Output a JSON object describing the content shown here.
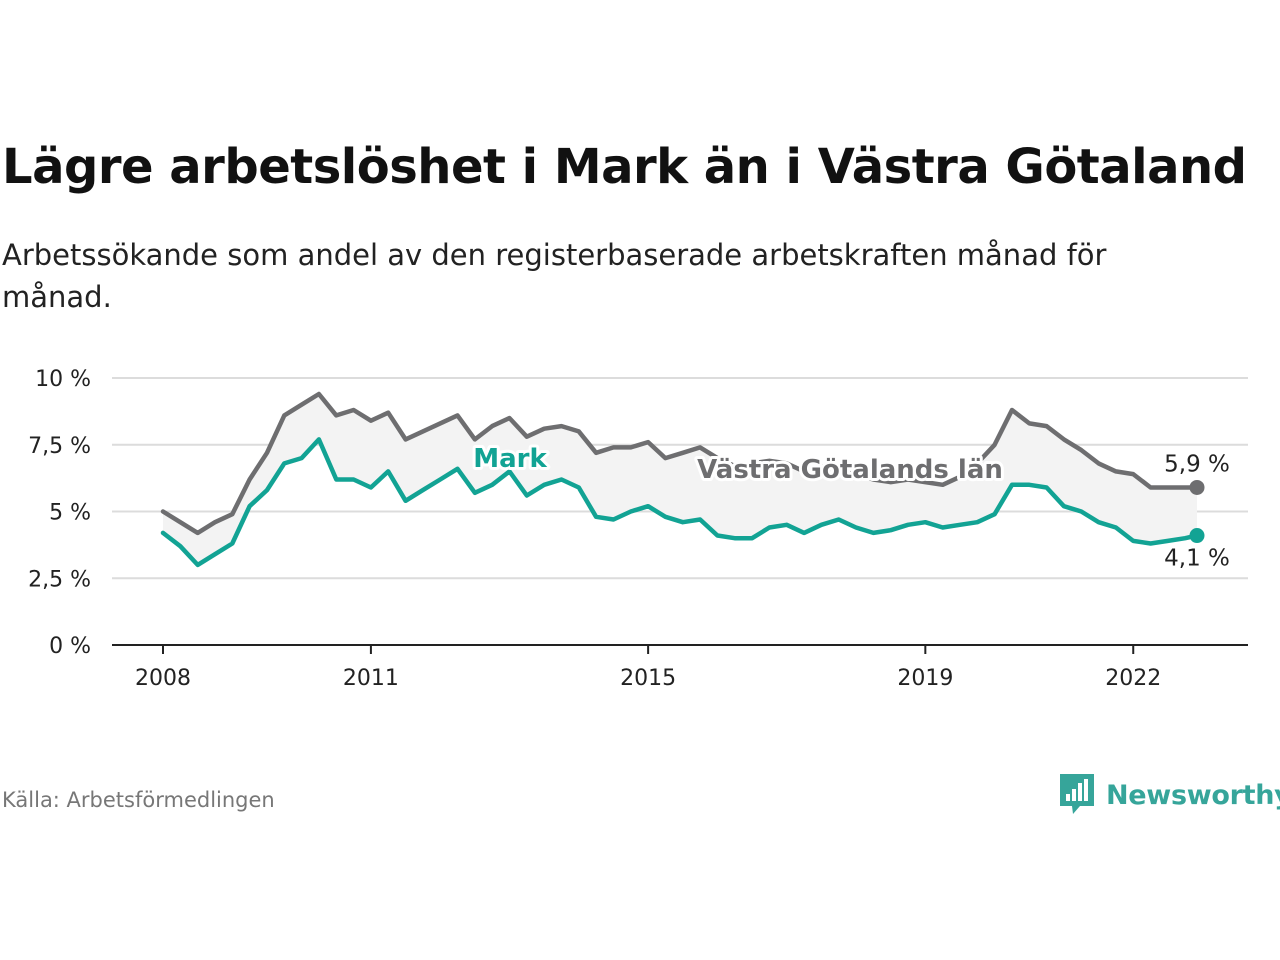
{
  "title": "Lägre arbetslöshet i Mark än i Västra Götaland",
  "subtitle": "Arbetssökande som andel av den registerbaserade arbetskraften månad för månad.",
  "source": "Källa: Arbetsförmedlingen",
  "brand": {
    "name": "Newsworthy",
    "icon": "newsworthy-logo-icon",
    "color": "#36a59a"
  },
  "chart_data": {
    "type": "line",
    "title": "Lägre arbetslöshet i Mark än i Västra Götaland",
    "xlabel": "",
    "ylabel": "",
    "ylim": [
      0,
      10
    ],
    "xlim": [
      2008,
      2023
    ],
    "y_ticks": [
      {
        "value": 0,
        "label": "0 %"
      },
      {
        "value": 2.5,
        "label": "2,5 %"
      },
      {
        "value": 5,
        "label": "5 %"
      },
      {
        "value": 7.5,
        "label": "7,5 %"
      },
      {
        "value": 10,
        "label": "10 %"
      }
    ],
    "x_ticks": [
      {
        "value": 2008,
        "label": "2008"
      },
      {
        "value": 2011,
        "label": "2011"
      },
      {
        "value": 2015,
        "label": "2015"
      },
      {
        "value": 2019,
        "label": "2019"
      },
      {
        "value": 2022,
        "label": "2022"
      }
    ],
    "grid": true,
    "x": [
      2008.0,
      2008.25,
      2008.5,
      2008.75,
      2009.0,
      2009.25,
      2009.5,
      2009.75,
      2010.0,
      2010.25,
      2010.5,
      2010.75,
      2011.0,
      2011.25,
      2011.5,
      2011.75,
      2012.0,
      2012.25,
      2012.5,
      2012.75,
      2013.0,
      2013.25,
      2013.5,
      2013.75,
      2014.0,
      2014.25,
      2014.5,
      2014.75,
      2015.0,
      2015.25,
      2015.5,
      2015.75,
      2016.0,
      2016.25,
      2016.5,
      2016.75,
      2017.0,
      2017.25,
      2017.5,
      2017.75,
      2018.0,
      2018.25,
      2018.5,
      2018.75,
      2019.0,
      2019.25,
      2019.5,
      2019.75,
      2020.0,
      2020.25,
      2020.5,
      2020.75,
      2021.0,
      2021.25,
      2021.5,
      2021.75,
      2022.0,
      2022.25,
      2022.5,
      2022.75,
      2022.92
    ],
    "series": [
      {
        "name": "Västra Götalands län",
        "color": "#6e6e70",
        "values": [
          5.0,
          4.6,
          4.2,
          4.6,
          4.9,
          6.2,
          7.2,
          8.6,
          9.0,
          9.4,
          8.6,
          8.8,
          8.4,
          8.7,
          7.7,
          8.0,
          8.3,
          8.6,
          7.7,
          8.2,
          8.5,
          7.8,
          8.1,
          8.2,
          8.0,
          7.2,
          7.4,
          7.4,
          7.6,
          7.0,
          7.2,
          7.4,
          7.0,
          6.7,
          6.8,
          6.9,
          6.8,
          6.5,
          6.7,
          6.5,
          6.4,
          6.2,
          6.1,
          6.2,
          6.1,
          6.0,
          6.3,
          6.8,
          7.5,
          8.8,
          8.3,
          8.2,
          7.7,
          7.3,
          6.8,
          6.5,
          6.4,
          5.9,
          5.9,
          5.9,
          5.9
        ]
      },
      {
        "name": "Mark",
        "color": "#12a394",
        "values": [
          4.2,
          3.7,
          3.0,
          3.4,
          3.8,
          5.2,
          5.8,
          6.8,
          7.0,
          7.7,
          6.2,
          6.2,
          5.9,
          6.5,
          5.4,
          5.8,
          6.2,
          6.6,
          5.7,
          6.0,
          6.5,
          5.6,
          6.0,
          6.2,
          5.9,
          4.8,
          4.7,
          5.0,
          5.2,
          4.8,
          4.6,
          4.7,
          4.1,
          4.0,
          4.0,
          4.4,
          4.5,
          4.2,
          4.5,
          4.7,
          4.4,
          4.2,
          4.3,
          4.5,
          4.6,
          4.4,
          4.5,
          4.6,
          4.9,
          6.0,
          6.0,
          5.9,
          5.2,
          5.0,
          4.6,
          4.4,
          3.9,
          3.8,
          3.9,
          4.0,
          4.1
        ]
      }
    ],
    "annotations": [
      {
        "text": "Mark",
        "series": "Mark"
      },
      {
        "text": "Västra Götalands län",
        "series": "Västra Götalands län"
      },
      {
        "text": "5,9 %",
        "series": "Västra Götalands län",
        "value": 5.9
      },
      {
        "text": "4,1 %",
        "series": "Mark",
        "value": 4.1
      }
    ]
  }
}
